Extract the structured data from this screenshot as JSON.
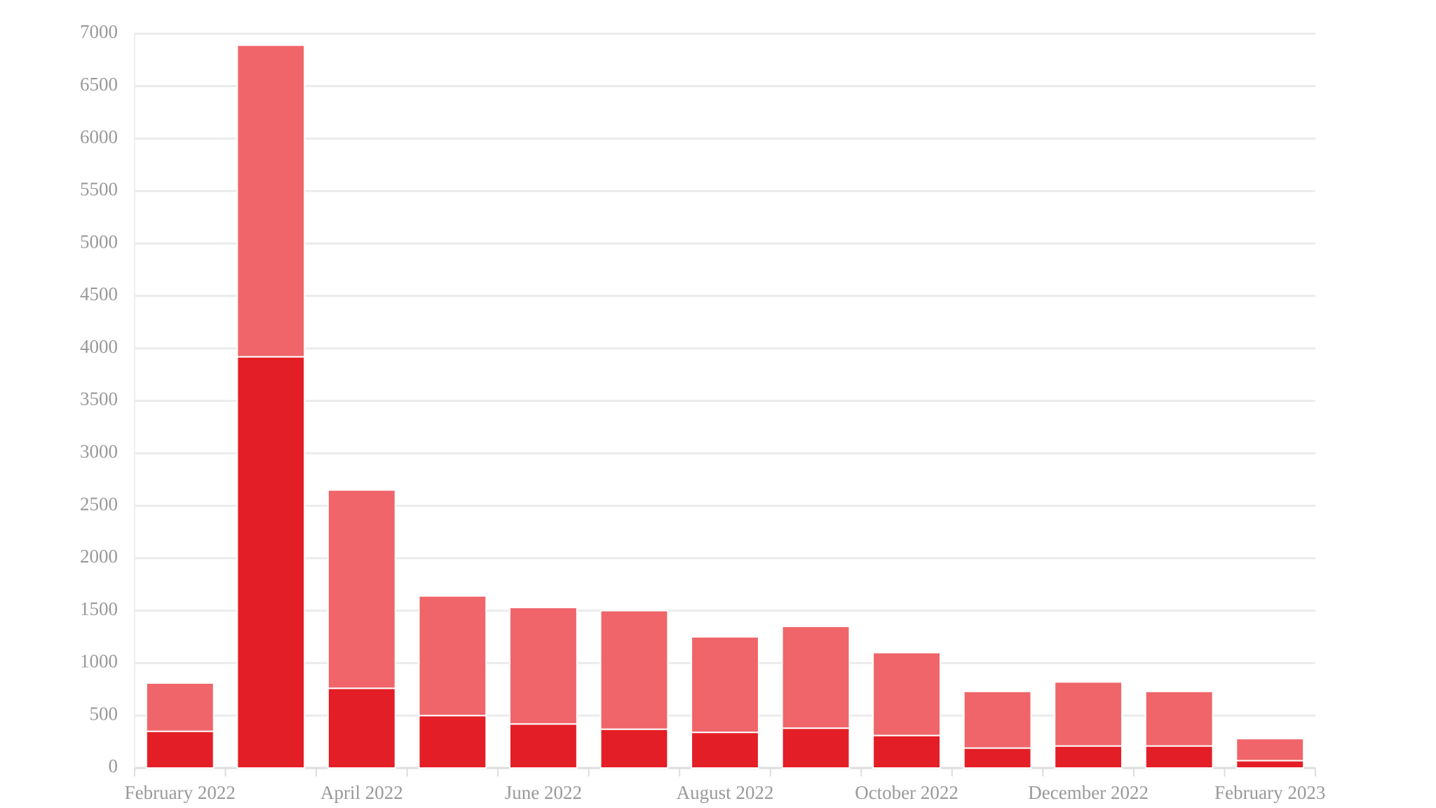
{
  "chart_data": {
    "type": "stacked_bar",
    "categories": [
      "February 2022",
      null,
      "April 2022",
      null,
      "June 2022",
      null,
      "August 2022",
      null,
      "October 2022",
      null,
      "December 2022",
      null,
      "February 2023"
    ],
    "series": [
      {
        "color": "#e41e26",
        "values": [
          350,
          3920,
          760,
          500,
          420,
          370,
          340,
          380,
          310,
          190,
          210,
          210,
          70
        ]
      },
      {
        "color": "#ef6569",
        "values": [
          460,
          2970,
          1890,
          1140,
          1110,
          1130,
          910,
          970,
          790,
          540,
          610,
          520,
          210
        ]
      }
    ],
    "ylim": [
      0,
      7000
    ],
    "yticks": [
      0,
      500,
      1000,
      1500,
      2000,
      2500,
      3000,
      3500,
      4000,
      4500,
      5000,
      5500,
      6000,
      6500,
      7000
    ],
    "grid": true
  }
}
